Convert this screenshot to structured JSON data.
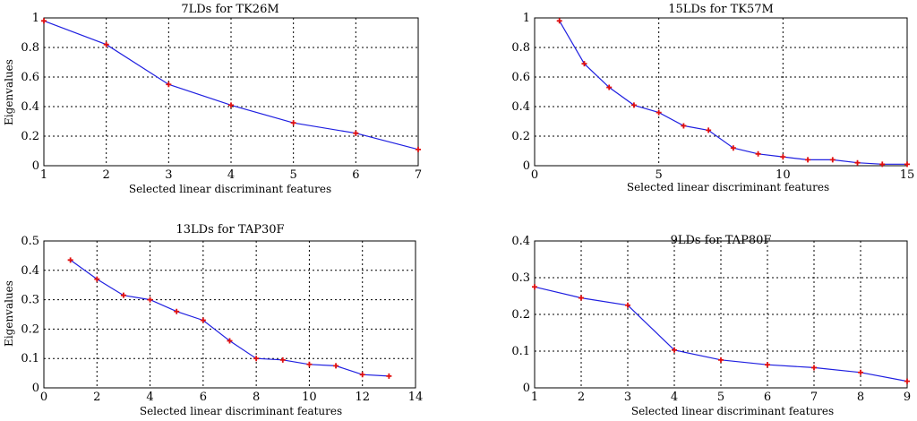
{
  "figure": {
    "panels": [
      {
        "id": "tk26m",
        "title": "7LDs for TK26M",
        "xlabel": "Selected linear discriminant features",
        "ylabel": "Eigenvalues"
      },
      {
        "id": "tk57m",
        "title": "15LDs for TK57M",
        "xlabel": "Selected linear discriminant features",
        "ylabel": ""
      },
      {
        "id": "tap30f",
        "title": "13LDs for TAP30F",
        "xlabel": "Selected linear discriminant features",
        "ylabel": "Eigenvalues"
      },
      {
        "id": "tap80f",
        "title": "9LDs for TAP80F",
        "xlabel": "Selected linear discriminant features",
        "ylabel": ""
      }
    ]
  },
  "chart_data": [
    {
      "type": "line",
      "title": "7LDs for TK26M",
      "xlabel": "Selected linear discriminant features",
      "ylabel": "Eigenvalues",
      "x": [
        1,
        2,
        3,
        4,
        5,
        6,
        7
      ],
      "values": [
        0.98,
        0.82,
        0.55,
        0.41,
        0.29,
        0.22,
        0.11
      ],
      "xlim": [
        1,
        7
      ],
      "ylim": [
        0,
        1
      ],
      "xticks": [
        1,
        2,
        3,
        4,
        5,
        6,
        7
      ],
      "yticks": [
        0,
        0.2,
        0.4,
        0.6,
        0.8,
        1
      ],
      "ytick_labels": [
        "0",
        "0.2",
        "0.4",
        "0.6",
        "0.8",
        "1"
      ],
      "grid": true,
      "line_color": "#1f1fe0",
      "marker_color": "#e01010"
    },
    {
      "type": "line",
      "title": "15LDs for TK57M",
      "xlabel": "Selected linear discriminant features",
      "ylabel": "",
      "x": [
        1,
        2,
        3,
        4,
        5,
        6,
        7,
        8,
        9,
        10,
        11,
        12,
        13,
        14,
        15
      ],
      "values": [
        0.98,
        0.69,
        0.53,
        0.41,
        0.36,
        0.27,
        0.24,
        0.12,
        0.08,
        0.06,
        0.04,
        0.04,
        0.02,
        0.01,
        0.01
      ],
      "xlim": [
        0,
        15
      ],
      "ylim": [
        0,
        1
      ],
      "xticks": [
        0,
        5,
        10,
        15
      ],
      "yticks": [
        0,
        0.2,
        0.4,
        0.6,
        0.8,
        1
      ],
      "ytick_labels": [
        "0",
        "0.2",
        "0.4",
        "0.6",
        "0.8",
        "1"
      ],
      "grid": true,
      "line_color": "#1f1fe0",
      "marker_color": "#e01010"
    },
    {
      "type": "line",
      "title": "13LDs for TAP30F",
      "xlabel": "Selected linear discriminant features",
      "ylabel": "Eigenvalues",
      "x": [
        1,
        2,
        3,
        4,
        5,
        6,
        7,
        8,
        9,
        10,
        11,
        12,
        13
      ],
      "values": [
        0.435,
        0.37,
        0.315,
        0.3,
        0.26,
        0.23,
        0.16,
        0.1,
        0.095,
        0.08,
        0.075,
        0.045,
        0.04
      ],
      "xlim": [
        0,
        14
      ],
      "ylim": [
        0,
        0.5
      ],
      "xticks": [
        0,
        2,
        4,
        6,
        8,
        10,
        12,
        14
      ],
      "yticks": [
        0,
        0.1,
        0.2,
        0.3,
        0.4,
        0.5
      ],
      "ytick_labels": [
        "0",
        "0.1",
        "0.2",
        "0.3",
        "0.4",
        "0.5"
      ],
      "grid": true,
      "line_color": "#1f1fe0",
      "marker_color": "#e01010"
    },
    {
      "type": "line",
      "title": "9LDs for TAP80F",
      "xlabel": "Selected linear discriminant features",
      "ylabel": "",
      "x": [
        1,
        2,
        3,
        4,
        5,
        6,
        7,
        8,
        9
      ],
      "values": [
        0.275,
        0.245,
        0.225,
        0.103,
        0.076,
        0.063,
        0.055,
        0.042,
        0.018
      ],
      "xlim": [
        1,
        9
      ],
      "ylim": [
        0,
        0.4
      ],
      "xticks": [
        1,
        2,
        3,
        4,
        5,
        6,
        7,
        8,
        9
      ],
      "yticks": [
        0,
        0.1,
        0.2,
        0.3,
        0.4
      ],
      "ytick_labels": [
        "0",
        "0.1",
        "0.2",
        "0.3",
        "0.4"
      ],
      "grid": true,
      "line_color": "#1f1fe0",
      "marker_color": "#e01010"
    }
  ]
}
